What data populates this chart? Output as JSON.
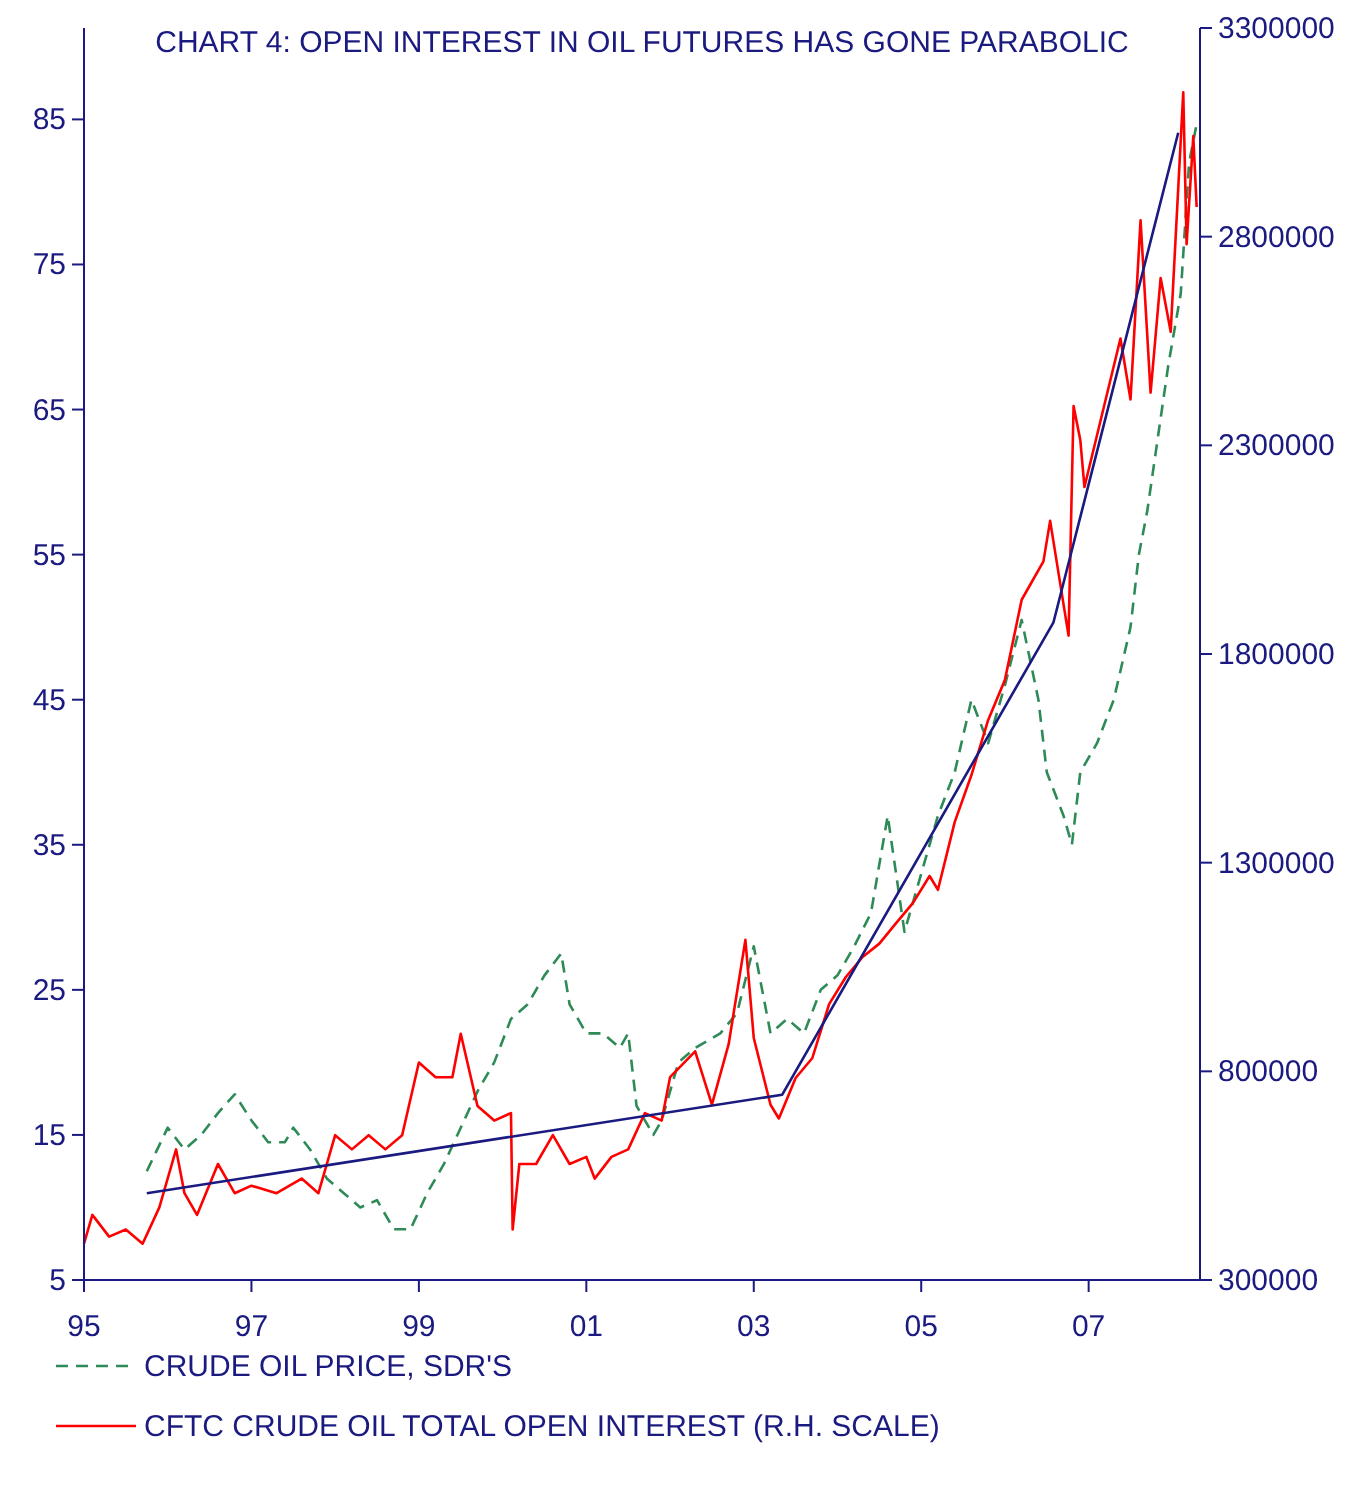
{
  "chart_data": {
    "type": "line",
    "title": "CHART 4: OPEN INTEREST IN OIL FUTURES HAS GONE PARABOLIC",
    "xlim": [
      1995,
      2008.33
    ],
    "xticks": [
      {
        "value": 1995,
        "label": "95"
      },
      {
        "value": 1997,
        "label": "97"
      },
      {
        "value": 1999,
        "label": "99"
      },
      {
        "value": 2001,
        "label": "01"
      },
      {
        "value": 2003,
        "label": "03"
      },
      {
        "value": 2005,
        "label": "05"
      },
      {
        "value": 2007,
        "label": "07"
      }
    ],
    "ylim": [
      5,
      91.3
    ],
    "yticks": [
      5,
      15,
      25,
      35,
      45,
      55,
      65,
      75,
      85
    ],
    "y2lim": [
      300000,
      3300000
    ],
    "y2ticks": [
      300000,
      800000,
      1300000,
      1800000,
      2300000,
      2800000,
      3300000
    ],
    "grid": false,
    "legend": "bottom left",
    "series": [
      {
        "name": "CRUDE OIL PRICE, SDR'S",
        "color": "#2e8b57",
        "line_style": "dashed",
        "x": [
          1995.75,
          1996.0,
          1996.2,
          1996.4,
          1996.6,
          1996.8,
          1997.0,
          1997.2,
          1997.4,
          1997.5,
          1997.7,
          1997.9,
          1998.1,
          1998.3,
          1998.5,
          1998.7,
          1998.9,
          1999.1,
          1999.3,
          1999.5,
          1999.7,
          1999.9,
          2000.1,
          2000.3,
          2000.5,
          2000.7,
          2000.8,
          2001.0,
          2001.2,
          2001.4,
          2001.5,
          2001.6,
          2001.8,
          2001.9,
          2002.1,
          2002.3,
          2002.6,
          2002.8,
          2003.0,
          2003.2,
          2003.4,
          2003.6,
          2003.8,
          2004.0,
          2004.2,
          2004.4,
          2004.6,
          2004.8,
          2005.0,
          2005.2,
          2005.4,
          2005.6,
          2005.8,
          2006.0,
          2006.2,
          2006.4,
          2006.5,
          2006.7,
          2006.8,
          2006.9,
          2007.1,
          2007.3,
          2007.5,
          2007.6,
          2007.7,
          2007.8,
          2007.95,
          2008.1,
          2008.2,
          2008.3
        ],
        "values": [
          12.5,
          15.5,
          14,
          15,
          16.5,
          17.8,
          16,
          14.5,
          14.5,
          15.5,
          14,
          12,
          11,
          10,
          10.5,
          8.5,
          8.5,
          11,
          13,
          15.5,
          18,
          20,
          23,
          24,
          26,
          27.5,
          24,
          22,
          22,
          21,
          22,
          17,
          15,
          16,
          20,
          21,
          22,
          23.4,
          28,
          22,
          23,
          22,
          25,
          26,
          28,
          30.3,
          37,
          29,
          33,
          37,
          40,
          45,
          42,
          46,
          50.5,
          45,
          40,
          37,
          35,
          40,
          42,
          45,
          50,
          55,
          58,
          62,
          68,
          73,
          82,
          85
        ]
      },
      {
        "name": "CFTC CRUDE OIL TOTAL OPEN INTEREST (R.H. SCALE)",
        "color": "#ff0000",
        "axis": "y2",
        "line_style": "solid",
        "x": [
          1995.0,
          1995.1,
          1995.3,
          1995.5,
          1995.7,
          1995.9,
          1996.1,
          1996.2,
          1996.35,
          1996.6,
          1996.8,
          1997.0,
          1997.3,
          1997.6,
          1997.8,
          1998.0,
          1998.2,
          1998.4,
          1998.6,
          1998.8,
          1999.0,
          1999.2,
          1999.4,
          1999.5,
          1999.7,
          1999.9,
          2000.1,
          2000.12,
          2000.2,
          2000.4,
          2000.6,
          2000.8,
          2001.0,
          2001.1,
          2001.3,
          2001.5,
          2001.7,
          2001.9,
          2002.0,
          2002.3,
          2002.5,
          2002.7,
          2002.9,
          2003.0,
          2003.2,
          2003.3,
          2003.5,
          2003.7,
          2003.9,
          2004.1,
          2004.3,
          2004.5,
          2004.7,
          2004.9,
          2005.1,
          2005.2,
          2005.4,
          2005.6,
          2005.8,
          2006.0,
          2006.2,
          2006.46,
          2006.54,
          2006.76,
          2006.82,
          2006.9,
          2006.95,
          2007.38,
          2007.5,
          2007.62,
          2007.74,
          2007.86,
          2007.98,
          2008.13,
          2008.17,
          2008.25,
          2008.29
        ],
        "values": [
          387000,
          456000,
          404000,
          421000,
          387000,
          474000,
          613000,
          508000,
          456000,
          578000,
          508000,
          526000,
          508000,
          543000,
          508000,
          647000,
          613000,
          647000,
          613000,
          647000,
          821000,
          786000,
          786000,
          890000,
          717000,
          682000,
          700000,
          421000,
          578000,
          578000,
          647000,
          578000,
          595000,
          543000,
          595000,
          613000,
          700000,
          682000,
          786000,
          848000,
          720000,
          865000,
          1115000,
          880000,
          720000,
          687000,
          784000,
          832000,
          961000,
          1026000,
          1074000,
          1106000,
          1155000,
          1203000,
          1268000,
          1235000,
          1397000,
          1510000,
          1642000,
          1738000,
          1930000,
          2022000,
          2119000,
          1844000,
          2394000,
          2313000,
          2200000,
          2556000,
          2410000,
          2839000,
          2426000,
          2701000,
          2572000,
          3146000,
          2782000,
          3041000,
          2871000
        ]
      },
      {
        "color": "#1a1a80",
        "axis": "y2",
        "line_style": "solid",
        "x": [
          1995.75,
          2003.34,
          2006.58,
          2008.07
        ],
        "values": [
          508000,
          744000,
          1876000,
          3049000
        ]
      }
    ]
  }
}
